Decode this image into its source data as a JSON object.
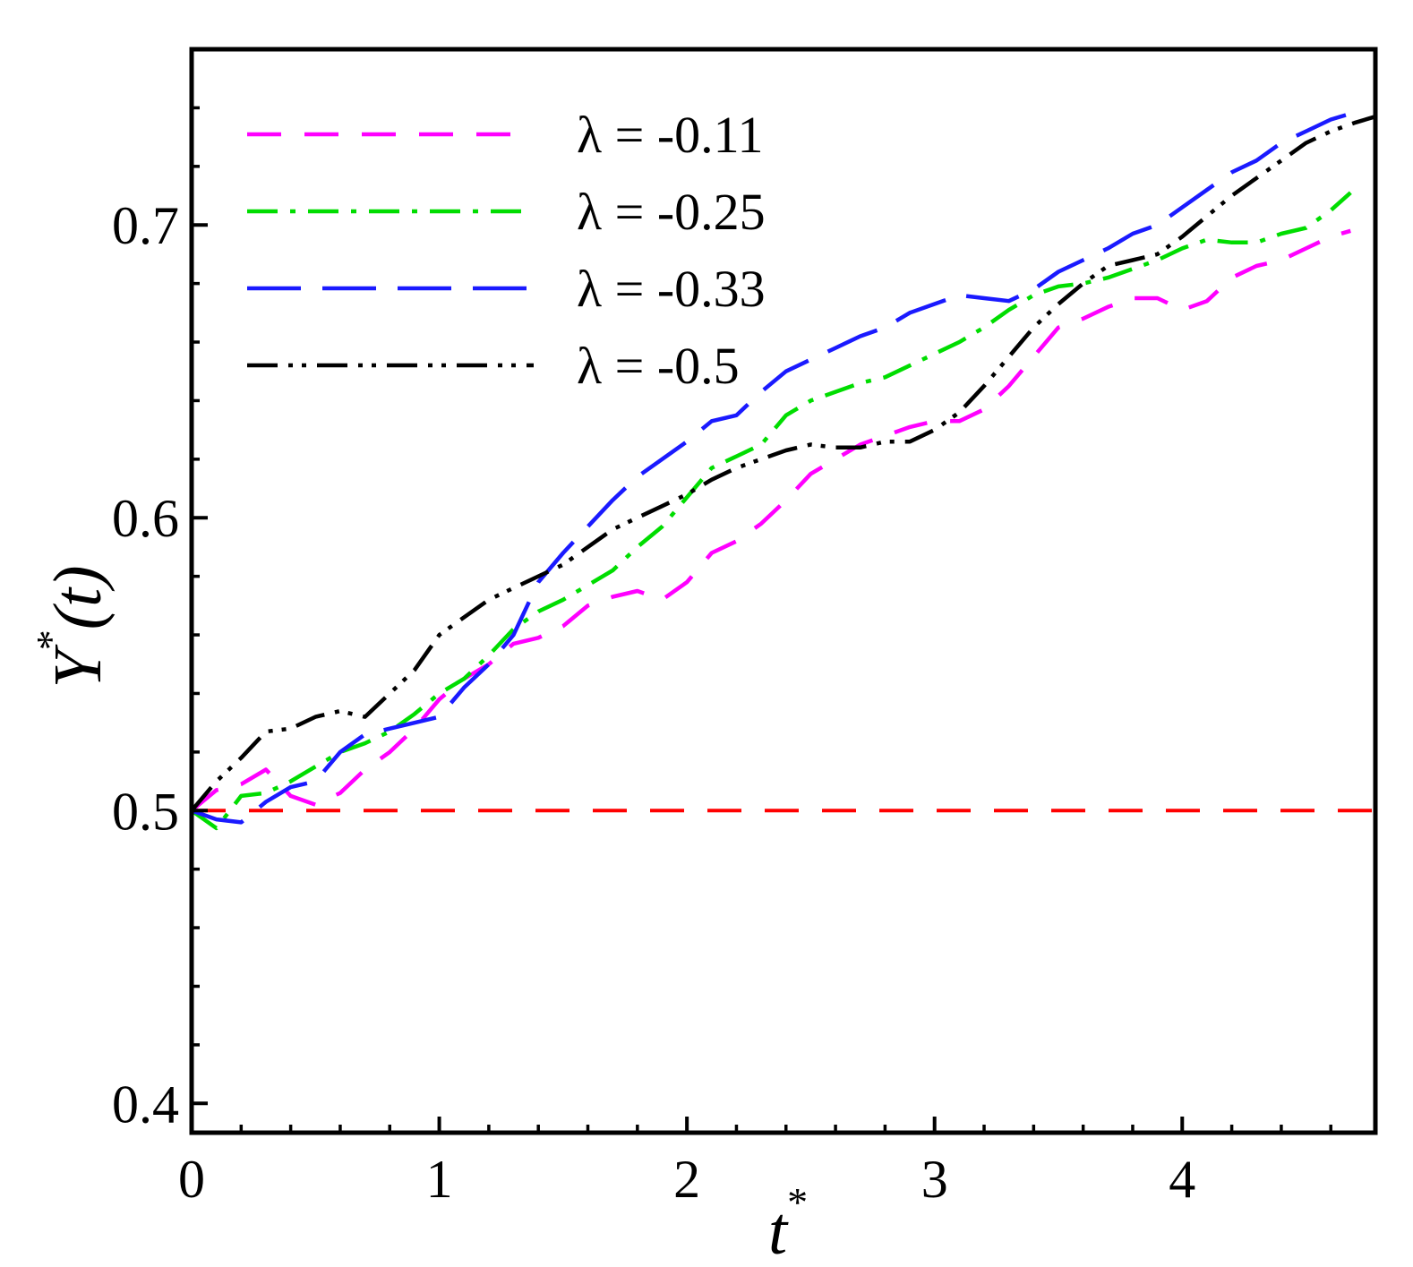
{
  "chart_data": {
    "type": "line",
    "title": "",
    "xlabel": {
      "base": "t",
      "sup": "*"
    },
    "ylabel": {
      "base": "Y",
      "sup": "*",
      "arg": "(t)"
    },
    "xlim": [
      0,
      4.78
    ],
    "ylim": [
      0.39,
      0.76
    ],
    "x_ticks": [
      {
        "value": 0,
        "label": "0"
      },
      {
        "value": 1,
        "label": "1"
      },
      {
        "value": 2,
        "label": "2"
      },
      {
        "value": 3,
        "label": "3"
      },
      {
        "value": 4,
        "label": "4"
      }
    ],
    "y_ticks": [
      {
        "value": 0.4,
        "label": "0.4"
      },
      {
        "value": 0.5,
        "label": "0.5"
      },
      {
        "value": 0.6,
        "label": "0.6"
      },
      {
        "value": 0.7,
        "label": "0.7"
      }
    ],
    "x_minor_step": 0.2,
    "y_minor_step": 0.02,
    "grid": false,
    "legend_position": "top-left",
    "reference_line": {
      "y": 0.5,
      "color": "#ff0000",
      "dash": "dashed"
    },
    "series": [
      {
        "name": "λ = -0.11",
        "color": "#ff00ff",
        "dash": "dashed",
        "x": [
          0,
          0.1,
          0.2,
          0.3,
          0.4,
          0.5,
          0.6,
          0.7,
          0.8,
          0.9,
          1.0,
          1.1,
          1.2,
          1.3,
          1.4,
          1.5,
          1.6,
          1.7,
          1.8,
          1.9,
          2.0,
          2.1,
          2.2,
          2.3,
          2.4,
          2.5,
          2.6,
          2.7,
          2.8,
          2.9,
          3.0,
          3.1,
          3.2,
          3.3,
          3.4,
          3.5,
          3.6,
          3.7,
          3.8,
          3.9,
          4.0,
          4.1,
          4.2,
          4.3,
          4.4,
          4.5,
          4.6,
          4.68
        ],
        "y": [
          0.5,
          0.507,
          0.509,
          0.514,
          0.505,
          0.502,
          0.506,
          0.514,
          0.52,
          0.528,
          0.538,
          0.545,
          0.55,
          0.557,
          0.559,
          0.563,
          0.57,
          0.573,
          0.575,
          0.572,
          0.578,
          0.588,
          0.592,
          0.598,
          0.606,
          0.615,
          0.62,
          0.625,
          0.628,
          0.631,
          0.633,
          0.633,
          0.637,
          0.645,
          0.655,
          0.665,
          0.668,
          0.672,
          0.675,
          0.675,
          0.671,
          0.674,
          0.682,
          0.686,
          0.688,
          0.692,
          0.696,
          0.698
        ]
      },
      {
        "name": "λ = -0.25",
        "color": "#00dd00",
        "dash": "dash-dot",
        "x": [
          0,
          0.1,
          0.2,
          0.3,
          0.4,
          0.5,
          0.6,
          0.7,
          0.8,
          0.9,
          1.0,
          1.1,
          1.2,
          1.3,
          1.4,
          1.5,
          1.6,
          1.7,
          1.8,
          1.9,
          2.0,
          2.1,
          2.2,
          2.3,
          2.4,
          2.5,
          2.6,
          2.7,
          2.8,
          2.9,
          3.0,
          3.1,
          3.2,
          3.3,
          3.4,
          3.5,
          3.6,
          3.7,
          3.8,
          3.9,
          4.0,
          4.1,
          4.2,
          4.3,
          4.4,
          4.5,
          4.6,
          4.68
        ],
        "y": [
          0.5,
          0.494,
          0.505,
          0.506,
          0.51,
          0.515,
          0.52,
          0.523,
          0.527,
          0.533,
          0.54,
          0.545,
          0.553,
          0.562,
          0.568,
          0.572,
          0.577,
          0.582,
          0.59,
          0.597,
          0.607,
          0.617,
          0.621,
          0.625,
          0.635,
          0.64,
          0.643,
          0.646,
          0.648,
          0.652,
          0.656,
          0.66,
          0.665,
          0.671,
          0.676,
          0.679,
          0.68,
          0.682,
          0.685,
          0.688,
          0.692,
          0.695,
          0.694,
          0.694,
          0.697,
          0.699,
          0.705,
          0.711
        ]
      },
      {
        "name": "λ = -0.33",
        "color": "#1a1aff",
        "dash": "long-dash",
        "x": [
          0,
          0.1,
          0.2,
          0.3,
          0.4,
          0.5,
          0.6,
          0.7,
          0.8,
          0.9,
          1.0,
          1.1,
          1.2,
          1.3,
          1.4,
          1.5,
          1.6,
          1.7,
          1.8,
          1.9,
          2.0,
          2.1,
          2.2,
          2.3,
          2.4,
          2.5,
          2.6,
          2.7,
          2.8,
          2.9,
          3.0,
          3.1,
          3.2,
          3.3,
          3.4,
          3.5,
          3.6,
          3.7,
          3.8,
          3.9,
          4.0,
          4.1,
          4.2,
          4.3,
          4.4,
          4.5,
          4.6,
          4.68
        ],
        "y": [
          0.5,
          0.497,
          0.496,
          0.503,
          0.508,
          0.51,
          0.52,
          0.526,
          0.528,
          0.53,
          0.532,
          0.542,
          0.55,
          0.56,
          0.578,
          0.588,
          0.597,
          0.606,
          0.614,
          0.62,
          0.626,
          0.633,
          0.635,
          0.643,
          0.65,
          0.654,
          0.658,
          0.662,
          0.665,
          0.67,
          0.673,
          0.676,
          0.675,
          0.674,
          0.678,
          0.684,
          0.688,
          0.692,
          0.697,
          0.7,
          0.706,
          0.712,
          0.718,
          0.722,
          0.728,
          0.732,
          0.736,
          0.738
        ]
      },
      {
        "name": "λ = -0.5",
        "color": "#000000",
        "dash": "dash-dot-dot",
        "x": [
          0,
          0.1,
          0.2,
          0.3,
          0.4,
          0.5,
          0.6,
          0.7,
          0.8,
          0.9,
          1.0,
          1.1,
          1.2,
          1.3,
          1.4,
          1.5,
          1.6,
          1.7,
          1.8,
          1.9,
          2.0,
          2.1,
          2.2,
          2.3,
          2.4,
          2.5,
          2.6,
          2.7,
          2.8,
          2.9,
          3.0,
          3.1,
          3.2,
          3.3,
          3.4,
          3.5,
          3.6,
          3.7,
          3.8,
          3.9,
          4.0,
          4.1,
          4.2,
          4.3,
          4.4,
          4.5,
          4.6,
          4.7,
          4.78
        ],
        "y": [
          0.5,
          0.51,
          0.518,
          0.527,
          0.528,
          0.532,
          0.534,
          0.532,
          0.54,
          0.548,
          0.56,
          0.566,
          0.572,
          0.576,
          0.58,
          0.584,
          0.59,
          0.596,
          0.6,
          0.604,
          0.608,
          0.613,
          0.617,
          0.62,
          0.623,
          0.625,
          0.624,
          0.624,
          0.626,
          0.626,
          0.63,
          0.636,
          0.645,
          0.655,
          0.665,
          0.673,
          0.68,
          0.686,
          0.688,
          0.69,
          0.696,
          0.703,
          0.71,
          0.716,
          0.722,
          0.728,
          0.732,
          0.735,
          0.737
        ]
      }
    ]
  }
}
